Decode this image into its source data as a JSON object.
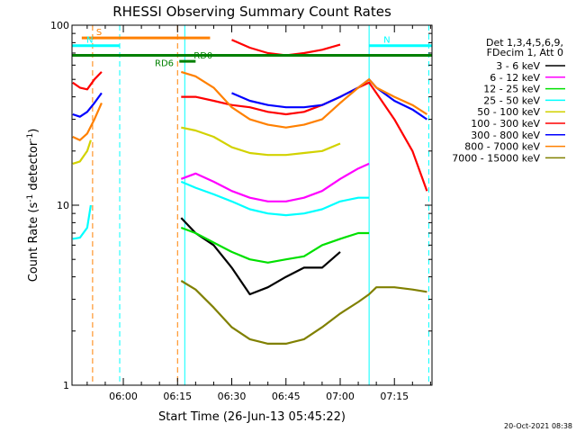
{
  "chart_data": {
    "type": "line",
    "title": "RHESSI Observing Summary Count Rates",
    "xlabel": "Start Time (26-Jun-13 05:45:22)",
    "ylabel_prefix": "Count Rate (s",
    "ylabel_sup1": "-1",
    "ylabel_mid": " detector",
    "ylabel_sup2": "-1",
    "ylabel_suffix": ")",
    "y_scale": "log",
    "ylim": [
      1,
      100
    ],
    "xlim_minutes": [
      -14.2,
      85.4
    ],
    "x_ticks": [
      {
        "label": "06:00",
        "minute": 0
      },
      {
        "label": "06:15",
        "minute": 15
      },
      {
        "label": "06:30",
        "minute": 30
      },
      {
        "label": "06:45",
        "minute": 45
      },
      {
        "label": "07:00",
        "minute": 60
      },
      {
        "label": "07:15",
        "minute": 75
      }
    ],
    "y_tick_labels": [
      {
        "label": "100",
        "value": 100
      },
      {
        "label": "10",
        "value": 10
      },
      {
        "label": "1",
        "value": 1
      }
    ],
    "legend": {
      "position": "top-right",
      "header": [
        "Det 1,3,4,5,6,9,",
        "FDecim 1, Att 0"
      ],
      "entries": [
        {
          "label": "3 - 6 keV",
          "color": "#000000"
        },
        {
          "label": "6 - 12 keV",
          "color": "#ff00ff"
        },
        {
          "label": "12 - 25 keV",
          "color": "#00e000"
        },
        {
          "label": "25 - 50 keV",
          "color": "#00ffff"
        },
        {
          "label": "50 - 100 keV",
          "color": "#d2d200"
        },
        {
          "label": "100 - 300 keV",
          "color": "#ff0000"
        },
        {
          "label": "300 - 800 keV",
          "color": "#0000ff"
        },
        {
          "label": "800 - 7000 keV",
          "color": "#ff8000"
        },
        {
          "label": "7000 - 15000 keV",
          "color": "#808000"
        }
      ]
    },
    "flags": [
      {
        "label": "S",
        "color": "#ff8000",
        "start": -11.5,
        "end": 24.0,
        "level": 85
      },
      {
        "label": "N",
        "color": "#00ffff",
        "start": -14.2,
        "end": -1.0,
        "level": 77
      },
      {
        "label": "N",
        "color": "#00ffff",
        "start": 68.0,
        "end": 85.4,
        "level": 77
      },
      {
        "label": "RD0",
        "color": "#008000",
        "start": 15.5,
        "end": 20.0,
        "level": 63
      },
      {
        "label": "RD6",
        "color": "#008000",
        "start": -14.2,
        "end": 85.4,
        "level": 68
      }
    ],
    "orbit_markers": [
      {
        "minute": -8.5,
        "color": "#ff8000",
        "style": "dashed"
      },
      {
        "minute": -1.0,
        "color": "#00ffff",
        "style": "dashed"
      },
      {
        "minute": 15.0,
        "color": "#ff8000",
        "style": "dashed"
      },
      {
        "minute": 17.0,
        "color": "#00ffff",
        "style": "solid"
      },
      {
        "minute": 68.0,
        "color": "#00ffff",
        "style": "solid"
      },
      {
        "minute": 84.5,
        "color": "#00ffff",
        "style": "dashed"
      }
    ],
    "series": [
      {
        "name": "3 - 6 keV",
        "color": "#000000",
        "segments": [
          {
            "x": [
              16,
              20,
              25,
              30,
              35,
              40,
              45,
              50,
              55,
              60
            ],
            "y": [
              8.5,
              7,
              6,
              4.5,
              3.2,
              3.5,
              4,
              4.5,
              4.5,
              5.5
            ]
          }
        ]
      },
      {
        "name": "6 - 12 keV",
        "color": "#ff00ff",
        "segments": [
          {
            "x": [
              16,
              20,
              25,
              30,
              35,
              40,
              45,
              50,
              55,
              60,
              65,
              68
            ],
            "y": [
              14,
              15,
              13.5,
              12,
              11,
              10.5,
              10.5,
              11,
              12,
              14,
              16,
              17
            ]
          }
        ]
      },
      {
        "name": "12 - 25 keV",
        "color": "#00e000",
        "segments": [
          {
            "x": [
              16,
              20,
              25,
              30,
              35,
              40,
              45,
              50,
              55,
              60,
              65,
              68
            ],
            "y": [
              7.5,
              7,
              6.2,
              5.5,
              5,
              4.8,
              5,
              5.2,
              6,
              6.5,
              7,
              7
            ]
          }
        ]
      },
      {
        "name": "25 - 50 keV",
        "color": "#00ffff",
        "segments": [
          {
            "x": [
              -14,
              -12,
              -10,
              -9
            ],
            "y": [
              6.5,
              6.6,
              7.5,
              10
            ]
          },
          {
            "x": [
              16,
              20,
              25,
              30,
              35,
              40,
              45,
              50,
              55,
              60,
              65,
              68
            ],
            "y": [
              13.5,
              12.5,
              11.5,
              10.5,
              9.5,
              9,
              8.8,
              9,
              9.5,
              10.5,
              11,
              11
            ]
          }
        ]
      },
      {
        "name": "50 - 100 keV",
        "color": "#d2d200",
        "segments": [
          {
            "x": [
              -14,
              -12,
              -10,
              -9
            ],
            "y": [
              17,
              17.5,
              20,
              23
            ]
          },
          {
            "x": [
              16,
              20,
              25,
              30,
              35,
              40,
              45,
              50,
              55,
              60
            ],
            "y": [
              27,
              26,
              24,
              21,
              19.5,
              19,
              19,
              19.5,
              20,
              22
            ]
          }
        ]
      },
      {
        "name": "100 - 300 keV",
        "color": "#ff0000",
        "segments": [
          {
            "x": [
              -14,
              -12,
              -10,
              -8,
              -6
            ],
            "y": [
              48,
              45,
              44,
              50,
              55
            ]
          },
          {
            "x": [
              16,
              20,
              25,
              30,
              35,
              40,
              45,
              50,
              55,
              60,
              65,
              68,
              70,
              75,
              80,
              84
            ],
            "y": [
              40,
              40,
              38,
              36,
              35,
              33,
              32,
              33,
              36,
              40,
              45,
              48,
              42,
              30,
              20,
              12
            ]
          },
          {
            "x": [
              30,
              35,
              40,
              45,
              50,
              55,
              60
            ],
            "y": [
              83,
              75,
              70,
              68,
              70,
              73,
              78
            ]
          }
        ]
      },
      {
        "name": "300 - 800 keV",
        "color": "#0000ff",
        "segments": [
          {
            "x": [
              -14,
              -12,
              -10,
              -8,
              -6
            ],
            "y": [
              32,
              31,
              33,
              37,
              42
            ]
          },
          {
            "x": [
              30,
              35,
              40,
              45,
              50,
              55,
              60,
              65,
              68,
              70,
              75,
              80,
              84
            ],
            "y": [
              42,
              38,
              36,
              35,
              35,
              36,
              40,
              45,
              50,
              45,
              38,
              34,
              30
            ]
          }
        ]
      },
      {
        "name": "800 - 7000 keV",
        "color": "#ff8000",
        "segments": [
          {
            "x": [
              -14,
              -12,
              -10,
              -8,
              -6
            ],
            "y": [
              24,
              23,
              25,
              30,
              37
            ]
          },
          {
            "x": [
              16,
              20,
              25,
              30,
              35,
              40,
              45,
              50,
              55,
              60,
              65,
              68,
              70,
              75,
              80,
              84
            ],
            "y": [
              55,
              52,
              45,
              35,
              30,
              28,
              27,
              28,
              30,
              37,
              45,
              50,
              45,
              40,
              36,
              32
            ]
          }
        ]
      },
      {
        "name": "7000 - 15000 keV",
        "color": "#808000",
        "segments": [
          {
            "x": [
              16,
              20,
              25,
              30,
              35,
              40,
              45,
              50,
              55,
              60,
              65,
              68,
              70,
              75,
              80,
              84
            ],
            "y": [
              3.8,
              3.4,
              2.7,
              2.1,
              1.8,
              1.7,
              1.7,
              1.8,
              2.1,
              2.5,
              2.9,
              3.2,
              3.5,
              3.5,
              3.4,
              3.3
            ]
          }
        ]
      }
    ]
  },
  "footer": {
    "timestamp": "20-Oct-2021 08:38"
  }
}
